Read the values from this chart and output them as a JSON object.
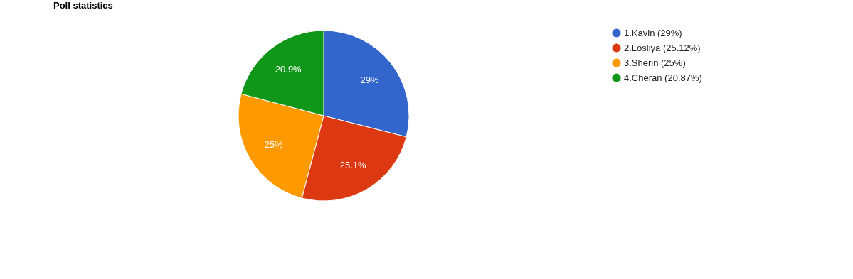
{
  "chart_data": {
    "type": "pie",
    "title": "Poll statistics",
    "categories": [
      "1.Kavin (29%)",
      "2.Losliya (25.12%)",
      "3.Sherin (25%)",
      "4.Cheran (20.87%)"
    ],
    "values": [
      29,
      25.12,
      25,
      20.87
    ],
    "value_labels": [
      "29%",
      "25.1%",
      "25%",
      "20.9%"
    ],
    "colors": [
      "#3366cc",
      "#dc3912",
      "#ff9900",
      "#109618"
    ],
    "legend": "right"
  }
}
